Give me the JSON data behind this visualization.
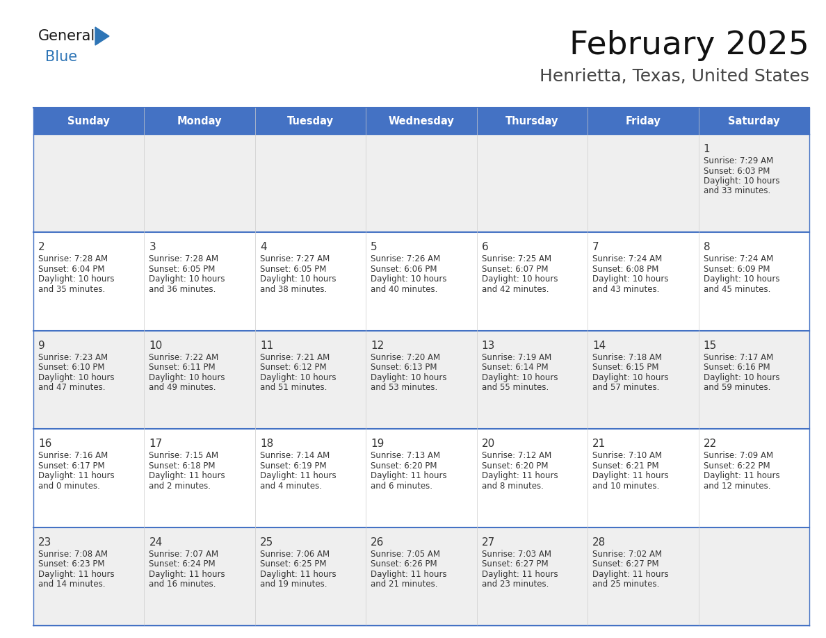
{
  "title": "February 2025",
  "subtitle": "Henrietta, Texas, United States",
  "header_bg": "#4472C4",
  "header_text": "#FFFFFF",
  "header_days": [
    "Sunday",
    "Monday",
    "Tuesday",
    "Wednesday",
    "Thursday",
    "Friday",
    "Saturday"
  ],
  "row_bg_odd": "#EFEFEF",
  "row_bg_even": "#FFFFFF",
  "cell_text_color": "#333333",
  "day_num_color": "#333333",
  "grid_line_color": "#4472C4",
  "weeks": [
    [
      {
        "day": null
      },
      {
        "day": null
      },
      {
        "day": null
      },
      {
        "day": null
      },
      {
        "day": null
      },
      {
        "day": null
      },
      {
        "day": 1,
        "sunrise": "7:29 AM",
        "sunset": "6:03 PM",
        "daylight": "10 hours and 33 minutes"
      }
    ],
    [
      {
        "day": 2,
        "sunrise": "7:28 AM",
        "sunset": "6:04 PM",
        "daylight": "10 hours and 35 minutes"
      },
      {
        "day": 3,
        "sunrise": "7:28 AM",
        "sunset": "6:05 PM",
        "daylight": "10 hours and 36 minutes"
      },
      {
        "day": 4,
        "sunrise": "7:27 AM",
        "sunset": "6:05 PM",
        "daylight": "10 hours and 38 minutes"
      },
      {
        "day": 5,
        "sunrise": "7:26 AM",
        "sunset": "6:06 PM",
        "daylight": "10 hours and 40 minutes"
      },
      {
        "day": 6,
        "sunrise": "7:25 AM",
        "sunset": "6:07 PM",
        "daylight": "10 hours and 42 minutes"
      },
      {
        "day": 7,
        "sunrise": "7:24 AM",
        "sunset": "6:08 PM",
        "daylight": "10 hours and 43 minutes"
      },
      {
        "day": 8,
        "sunrise": "7:24 AM",
        "sunset": "6:09 PM",
        "daylight": "10 hours and 45 minutes"
      }
    ],
    [
      {
        "day": 9,
        "sunrise": "7:23 AM",
        "sunset": "6:10 PM",
        "daylight": "10 hours and 47 minutes"
      },
      {
        "day": 10,
        "sunrise": "7:22 AM",
        "sunset": "6:11 PM",
        "daylight": "10 hours and 49 minutes"
      },
      {
        "day": 11,
        "sunrise": "7:21 AM",
        "sunset": "6:12 PM",
        "daylight": "10 hours and 51 minutes"
      },
      {
        "day": 12,
        "sunrise": "7:20 AM",
        "sunset": "6:13 PM",
        "daylight": "10 hours and 53 minutes"
      },
      {
        "day": 13,
        "sunrise": "7:19 AM",
        "sunset": "6:14 PM",
        "daylight": "10 hours and 55 minutes"
      },
      {
        "day": 14,
        "sunrise": "7:18 AM",
        "sunset": "6:15 PM",
        "daylight": "10 hours and 57 minutes"
      },
      {
        "day": 15,
        "sunrise": "7:17 AM",
        "sunset": "6:16 PM",
        "daylight": "10 hours and 59 minutes"
      }
    ],
    [
      {
        "day": 16,
        "sunrise": "7:16 AM",
        "sunset": "6:17 PM",
        "daylight": "11 hours and 0 minutes"
      },
      {
        "day": 17,
        "sunrise": "7:15 AM",
        "sunset": "6:18 PM",
        "daylight": "11 hours and 2 minutes"
      },
      {
        "day": 18,
        "sunrise": "7:14 AM",
        "sunset": "6:19 PM",
        "daylight": "11 hours and 4 minutes"
      },
      {
        "day": 19,
        "sunrise": "7:13 AM",
        "sunset": "6:20 PM",
        "daylight": "11 hours and 6 minutes"
      },
      {
        "day": 20,
        "sunrise": "7:12 AM",
        "sunset": "6:20 PM",
        "daylight": "11 hours and 8 minutes"
      },
      {
        "day": 21,
        "sunrise": "7:10 AM",
        "sunset": "6:21 PM",
        "daylight": "11 hours and 10 minutes"
      },
      {
        "day": 22,
        "sunrise": "7:09 AM",
        "sunset": "6:22 PM",
        "daylight": "11 hours and 12 minutes"
      }
    ],
    [
      {
        "day": 23,
        "sunrise": "7:08 AM",
        "sunset": "6:23 PM",
        "daylight": "11 hours and 14 minutes"
      },
      {
        "day": 24,
        "sunrise": "7:07 AM",
        "sunset": "6:24 PM",
        "daylight": "11 hours and 16 minutes"
      },
      {
        "day": 25,
        "sunrise": "7:06 AM",
        "sunset": "6:25 PM",
        "daylight": "11 hours and 19 minutes"
      },
      {
        "day": 26,
        "sunrise": "7:05 AM",
        "sunset": "6:26 PM",
        "daylight": "11 hours and 21 minutes"
      },
      {
        "day": 27,
        "sunrise": "7:03 AM",
        "sunset": "6:27 PM",
        "daylight": "11 hours and 23 minutes"
      },
      {
        "day": 28,
        "sunrise": "7:02 AM",
        "sunset": "6:27 PM",
        "daylight": "11 hours and 25 minutes"
      },
      {
        "day": null
      }
    ]
  ],
  "logo_text_general": "General",
  "logo_text_blue": "Blue",
  "logo_color_general": "#1a1a1a",
  "logo_color_blue": "#2E75B6"
}
